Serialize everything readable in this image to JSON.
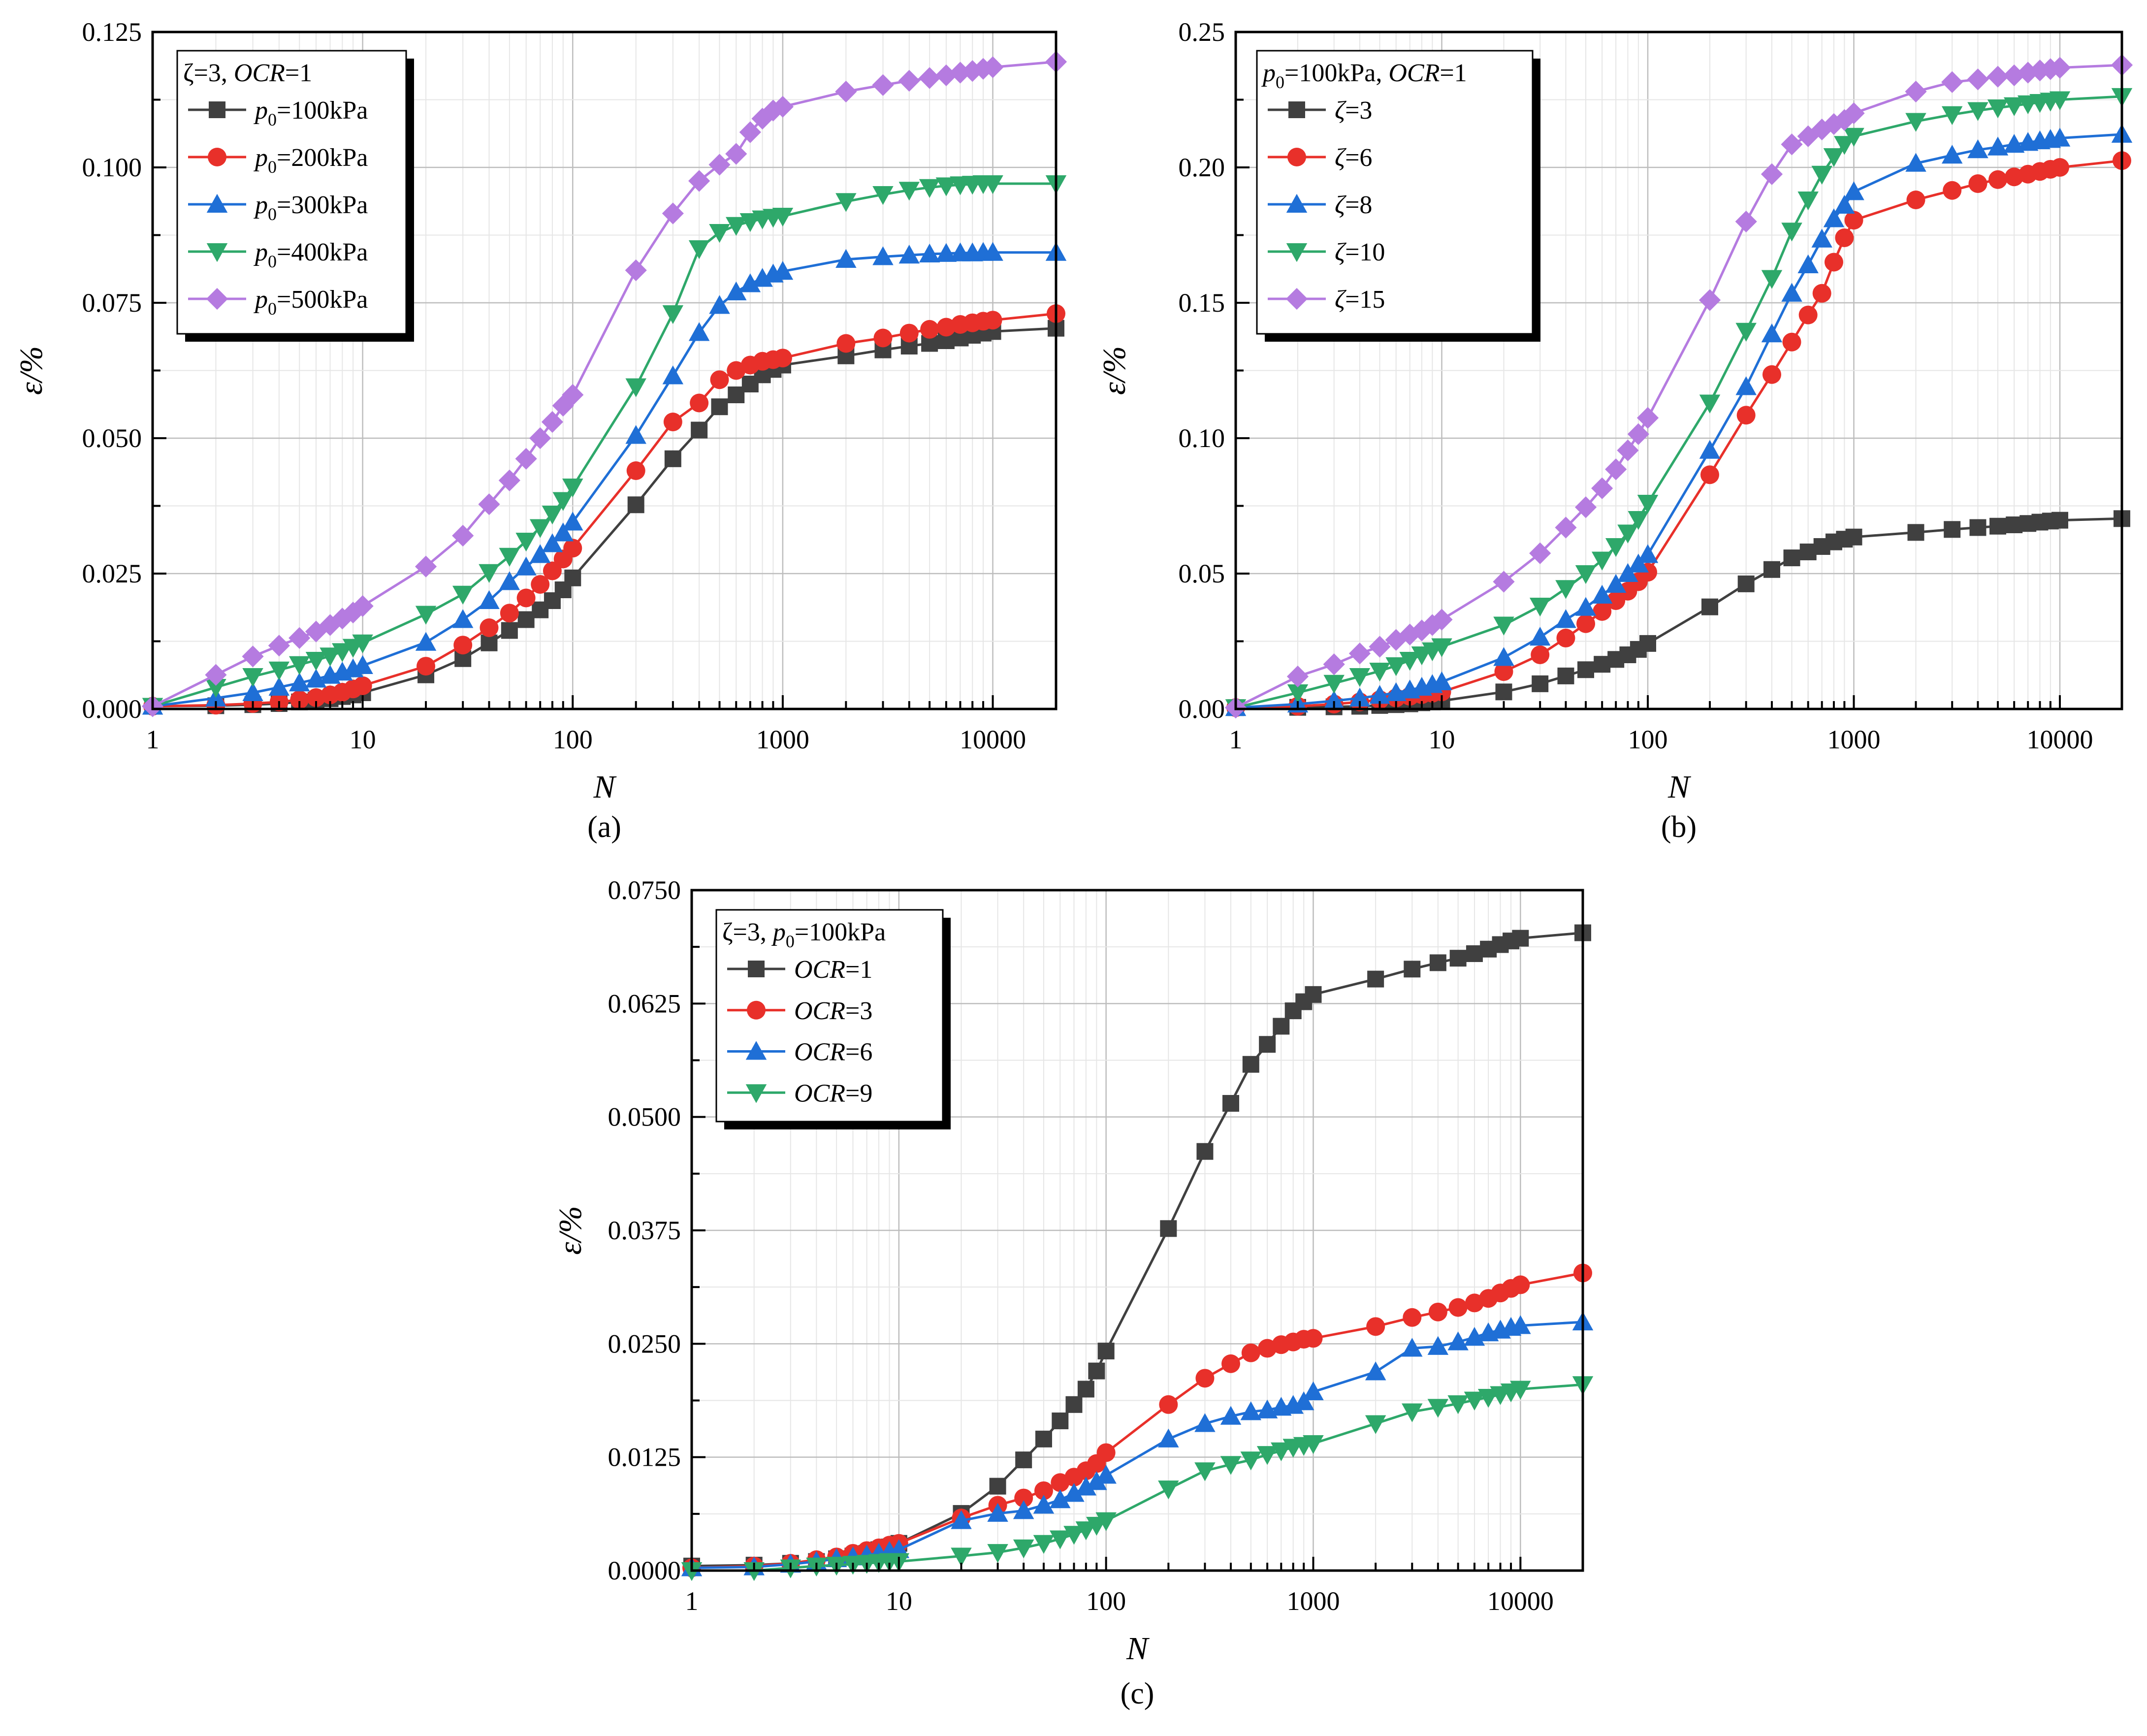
{
  "chart_data": [
    {
      "type": "line",
      "panel_label": "(a)",
      "xscale": "log",
      "xlabel": "N",
      "ylabel": "ε/%",
      "xlim": [
        1,
        20000
      ],
      "ylim": [
        0,
        0.125
      ],
      "x_ticks": [
        "1",
        "10",
        "100",
        "1000",
        "10000"
      ],
      "y_ticks": [
        "0.000",
        "0.025",
        "0.050",
        "0.075",
        "0.100",
        "0.125"
      ],
      "y_tick_values": [
        0,
        0.025,
        0.05,
        0.075,
        0.1,
        0.125
      ],
      "grid": true,
      "legend_position": "top-left",
      "legend_title": {
        "pre": "ζ=3,  ",
        "it": "OCR",
        "post": "=1"
      },
      "x": [
        1,
        2,
        3,
        4,
        5,
        6,
        7,
        8,
        9,
        10,
        20,
        30,
        40,
        50,
        60,
        70,
        80,
        90,
        100,
        200,
        300,
        400,
        500,
        600,
        700,
        800,
        900,
        1000,
        2000,
        3000,
        4000,
        5000,
        6000,
        7000,
        8000,
        9000,
        10000,
        20000
      ],
      "series": [
        {
          "name": "p0=100kPa",
          "label_it": "p",
          "label_sub": "0",
          "label_rest": "=100kPa",
          "color": "#404040",
          "marker": "square",
          "values": [
            0.0005,
            0.0006,
            0.0008,
            0.001,
            0.0013,
            0.0016,
            0.0019,
            0.0023,
            0.0026,
            0.003,
            0.0063,
            0.0093,
            0.0122,
            0.0145,
            0.0165,
            0.0183,
            0.02,
            0.022,
            0.0242,
            0.0377,
            0.0462,
            0.0515,
            0.0558,
            0.058,
            0.06,
            0.0617,
            0.0627,
            0.0635,
            0.0652,
            0.0663,
            0.067,
            0.0675,
            0.068,
            0.0685,
            0.069,
            0.0694,
            0.0697,
            0.0703
          ]
        },
        {
          "name": "p0=200kPa",
          "label_it": "p",
          "label_sub": "0",
          "label_rest": "=200kPa",
          "color": "#e8302a",
          "marker": "circle",
          "values": [
            0.0005,
            0.0007,
            0.001,
            0.0013,
            0.0017,
            0.0021,
            0.0026,
            0.0031,
            0.0037,
            0.0043,
            0.0079,
            0.0118,
            0.015,
            0.0177,
            0.0205,
            0.023,
            0.0255,
            0.0277,
            0.0297,
            0.044,
            0.053,
            0.0565,
            0.0608,
            0.0625,
            0.0635,
            0.0642,
            0.0645,
            0.0648,
            0.0675,
            0.0685,
            0.0694,
            0.0701,
            0.0705,
            0.071,
            0.0713,
            0.0716,
            0.0718,
            0.073
          ]
        },
        {
          "name": "p0=300kPa",
          "label_it": "p",
          "label_sub": "0",
          "label_rest": "=300kPa",
          "color": "#1f6fd6",
          "marker": "triangle-up",
          "values": [
            0.0005,
            0.002,
            0.003,
            0.004,
            0.0048,
            0.0055,
            0.0062,
            0.0068,
            0.0074,
            0.008,
            0.0123,
            0.0165,
            0.02,
            0.0235,
            0.0262,
            0.0285,
            0.0305,
            0.0325,
            0.0345,
            0.0505,
            0.0615,
            0.0695,
            0.0745,
            0.077,
            0.0785,
            0.0795,
            0.0803,
            0.0808,
            0.083,
            0.0835,
            0.0838,
            0.084,
            0.0841,
            0.0842,
            0.0842,
            0.0843,
            0.0843,
            0.0843
          ]
        },
        {
          "name": "p0=400kPa",
          "label_it": "p",
          "label_sub": "0",
          "label_rest": "=400kPa",
          "color": "#2ea86a",
          "marker": "triangle-down",
          "values": [
            0.0005,
            0.004,
            0.006,
            0.0072,
            0.0082,
            0.009,
            0.0098,
            0.0106,
            0.0114,
            0.0122,
            0.0175,
            0.0212,
            0.0252,
            0.0282,
            0.031,
            0.0335,
            0.036,
            0.0385,
            0.041,
            0.0595,
            0.073,
            0.085,
            0.088,
            0.0893,
            0.09,
            0.0905,
            0.0908,
            0.091,
            0.0937,
            0.095,
            0.0958,
            0.0963,
            0.0966,
            0.0968,
            0.0969,
            0.097,
            0.097,
            0.097
          ]
        },
        {
          "name": "p0=500kPa",
          "label_it": "p",
          "label_sub": "0",
          "label_rest": "=500kPa",
          "color": "#b57be0",
          "marker": "diamond",
          "values": [
            0.0005,
            0.0063,
            0.0097,
            0.0117,
            0.0131,
            0.0143,
            0.0155,
            0.0167,
            0.0178,
            0.019,
            0.0263,
            0.032,
            0.0378,
            0.0422,
            0.0462,
            0.05,
            0.053,
            0.056,
            0.058,
            0.081,
            0.0915,
            0.0975,
            0.1005,
            0.1025,
            0.1065,
            0.109,
            0.1105,
            0.1112,
            0.114,
            0.1152,
            0.116,
            0.1165,
            0.117,
            0.1175,
            0.1178,
            0.1182,
            0.1185,
            0.1195
          ]
        }
      ]
    },
    {
      "type": "line",
      "panel_label": "(b)",
      "xscale": "log",
      "xlabel": "N",
      "ylabel": "ε/%",
      "xlim": [
        1,
        20000
      ],
      "ylim": [
        0,
        0.25
      ],
      "x_ticks": [
        "1",
        "10",
        "100",
        "1000",
        "10000"
      ],
      "y_ticks": [
        "0.00",
        "0.05",
        "0.10",
        "0.15",
        "0.20",
        "0.25"
      ],
      "y_tick_values": [
        0,
        0.05,
        0.1,
        0.15,
        0.2,
        0.25
      ],
      "grid": true,
      "legend_position": "top-left",
      "legend_title": {
        "it1": "p",
        "sub": "0",
        "mid": "=100kPa,  ",
        "it2": "OCR",
        "post": "=1"
      },
      "x": [
        1,
        2,
        3,
        4,
        5,
        6,
        7,
        8,
        9,
        10,
        20,
        30,
        40,
        50,
        60,
        70,
        80,
        90,
        100,
        200,
        300,
        400,
        500,
        600,
        700,
        800,
        900,
        1000,
        2000,
        3000,
        4000,
        5000,
        6000,
        7000,
        8000,
        9000,
        10000,
        20000
      ],
      "series": [
        {
          "name": "ζ=3",
          "label_it": "ζ",
          "label_rest": "=3",
          "color": "#404040",
          "marker": "square",
          "values": [
            0.0005,
            0.0006,
            0.0008,
            0.001,
            0.0013,
            0.0016,
            0.0019,
            0.0023,
            0.0026,
            0.003,
            0.0063,
            0.0093,
            0.0122,
            0.0145,
            0.0165,
            0.0183,
            0.02,
            0.022,
            0.0242,
            0.0377,
            0.0462,
            0.0515,
            0.0558,
            0.058,
            0.06,
            0.0617,
            0.0627,
            0.0635,
            0.0652,
            0.0663,
            0.067,
            0.0675,
            0.068,
            0.0685,
            0.069,
            0.0694,
            0.0697,
            0.0703
          ]
        },
        {
          "name": "ζ=6",
          "label_it": "ζ",
          "label_rest": "=6",
          "color": "#e8302a",
          "marker": "circle",
          "values": [
            0.0005,
            0.001,
            0.0018,
            0.0026,
            0.0034,
            0.0041,
            0.0047,
            0.0053,
            0.0058,
            0.0063,
            0.0138,
            0.02,
            0.0262,
            0.0315,
            0.036,
            0.04,
            0.0435,
            0.047,
            0.0505,
            0.0865,
            0.1085,
            0.1235,
            0.1355,
            0.1455,
            0.1535,
            0.165,
            0.174,
            0.1805,
            0.188,
            0.1915,
            0.194,
            0.1955,
            0.1965,
            0.1975,
            0.1985,
            0.1993,
            0.2,
            0.2025
          ]
        },
        {
          "name": "ζ=8",
          "label_it": "ζ",
          "label_rest": "=8",
          "color": "#1f6fd6",
          "marker": "triangle-up",
          "values": [
            0.0005,
            0.0018,
            0.003,
            0.004,
            0.005,
            0.006,
            0.007,
            0.008,
            0.009,
            0.01,
            0.019,
            0.0265,
            0.033,
            0.0375,
            0.042,
            0.046,
            0.05,
            0.0535,
            0.057,
            0.0955,
            0.119,
            0.1385,
            0.1535,
            0.164,
            0.1735,
            0.181,
            0.186,
            0.191,
            0.2015,
            0.2045,
            0.2065,
            0.2075,
            0.2085,
            0.2092,
            0.2098,
            0.2103,
            0.2108,
            0.2122
          ]
        },
        {
          "name": "ζ=10",
          "label_it": "ζ",
          "label_rest": "=10",
          "color": "#2ea86a",
          "marker": "triangle-down",
          "values": [
            0.0005,
            0.006,
            0.0095,
            0.012,
            0.014,
            0.016,
            0.018,
            0.02,
            0.0215,
            0.023,
            0.031,
            0.038,
            0.0445,
            0.05,
            0.055,
            0.06,
            0.065,
            0.07,
            0.076,
            0.113,
            0.1395,
            0.159,
            0.1765,
            0.188,
            0.1975,
            0.204,
            0.2085,
            0.2115,
            0.217,
            0.2195,
            0.221,
            0.222,
            0.2228,
            0.2235,
            0.224,
            0.2245,
            0.225,
            0.2262
          ]
        },
        {
          "name": "ζ=15",
          "label_it": "ζ",
          "label_rest": "=15",
          "color": "#b57be0",
          "marker": "diamond",
          "values": [
            0.0005,
            0.012,
            0.0165,
            0.0205,
            0.023,
            0.0255,
            0.0275,
            0.029,
            0.031,
            0.033,
            0.047,
            0.0575,
            0.067,
            0.0745,
            0.0815,
            0.0885,
            0.0955,
            0.1015,
            0.1075,
            0.151,
            0.18,
            0.1975,
            0.2085,
            0.2115,
            0.214,
            0.216,
            0.2175,
            0.22,
            0.228,
            0.2315,
            0.2325,
            0.2335,
            0.234,
            0.235,
            0.2358,
            0.2363,
            0.2368,
            0.2378
          ]
        }
      ]
    },
    {
      "type": "line",
      "panel_label": "(c)",
      "xscale": "log",
      "xlabel": "N",
      "ylabel": "ε/%",
      "xlim": [
        1,
        20000
      ],
      "ylim": [
        0,
        0.075
      ],
      "x_ticks": [
        "1",
        "10",
        "100",
        "1000",
        "10000"
      ],
      "y_ticks": [
        "0.0000",
        "0.0125",
        "0.0250",
        "0.0375",
        "0.0500",
        "0.0625",
        "0.0750"
      ],
      "y_tick_values": [
        0,
        0.0125,
        0.025,
        0.0375,
        0.05,
        0.0625,
        0.075
      ],
      "grid": true,
      "legend_position": "top-left",
      "legend_title": {
        "pre": "ζ=3,  ",
        "it": "p",
        "sub": "0",
        "post": "=100kPa"
      },
      "x": [
        1,
        2,
        3,
        4,
        5,
        6,
        7,
        8,
        9,
        10,
        20,
        30,
        40,
        50,
        60,
        70,
        80,
        90,
        100,
        200,
        300,
        400,
        500,
        600,
        700,
        800,
        900,
        1000,
        2000,
        3000,
        4000,
        5000,
        6000,
        7000,
        8000,
        9000,
        10000,
        20000
      ],
      "series": [
        {
          "name": "OCR=1",
          "label_it": "OCR",
          "label_rest": "=1",
          "color": "#404040",
          "marker": "square",
          "values": [
            0.0005,
            0.0006,
            0.0008,
            0.001,
            0.0013,
            0.0016,
            0.0019,
            0.0023,
            0.0026,
            0.003,
            0.0063,
            0.0093,
            0.0122,
            0.0145,
            0.0165,
            0.0183,
            0.02,
            0.022,
            0.0242,
            0.0377,
            0.0462,
            0.0515,
            0.0558,
            0.058,
            0.06,
            0.0617,
            0.0627,
            0.0635,
            0.0652,
            0.0663,
            0.067,
            0.0675,
            0.068,
            0.0685,
            0.069,
            0.0694,
            0.0697,
            0.0703
          ]
        },
        {
          "name": "OCR=3",
          "label_it": "OCR",
          "label_rest": "=3",
          "color": "#e8302a",
          "marker": "circle",
          "values": [
            0.0003,
            0.0005,
            0.0008,
            0.0012,
            0.0015,
            0.0019,
            0.0022,
            0.0025,
            0.0028,
            0.003,
            0.0058,
            0.0072,
            0.008,
            0.0088,
            0.0097,
            0.0103,
            0.011,
            0.0118,
            0.013,
            0.0183,
            0.0212,
            0.0228,
            0.024,
            0.0245,
            0.0249,
            0.0252,
            0.0255,
            0.0256,
            0.0269,
            0.0279,
            0.0285,
            0.029,
            0.0295,
            0.03,
            0.0306,
            0.0311,
            0.0315,
            0.0328
          ]
        },
        {
          "name": "OCR=6",
          "label_it": "OCR",
          "label_rest": "=6",
          "color": "#1f6fd6",
          "marker": "triangle-up",
          "values": [
            0.0003,
            0.0004,
            0.0007,
            0.001,
            0.0013,
            0.0015,
            0.0017,
            0.0019,
            0.0021,
            0.0023,
            0.0055,
            0.0063,
            0.0066,
            0.0072,
            0.0078,
            0.0085,
            0.0092,
            0.0098,
            0.0105,
            0.0145,
            0.0162,
            0.017,
            0.0175,
            0.0177,
            0.018,
            0.0182,
            0.0186,
            0.0197,
            0.0219,
            0.0245,
            0.0247,
            0.0252,
            0.0257,
            0.0262,
            0.0265,
            0.0268,
            0.027,
            0.0274
          ]
        },
        {
          "name": "OCR=9",
          "label_it": "OCR",
          "label_rest": "=9",
          "color": "#2ea86a",
          "marker": "triangle-down",
          "values": [
            0.0,
            0.0,
            0.0003,
            0.0005,
            0.0006,
            0.0007,
            0.0008,
            0.0009,
            0.001,
            0.001,
            0.0016,
            0.002,
            0.0025,
            0.003,
            0.0035,
            0.004,
            0.0045,
            0.005,
            0.0055,
            0.009,
            0.011,
            0.0117,
            0.0122,
            0.0128,
            0.0132,
            0.0136,
            0.0138,
            0.014,
            0.0162,
            0.0175,
            0.018,
            0.0184,
            0.0188,
            0.0191,
            0.0194,
            0.0197,
            0.02,
            0.0205
          ]
        }
      ]
    }
  ]
}
